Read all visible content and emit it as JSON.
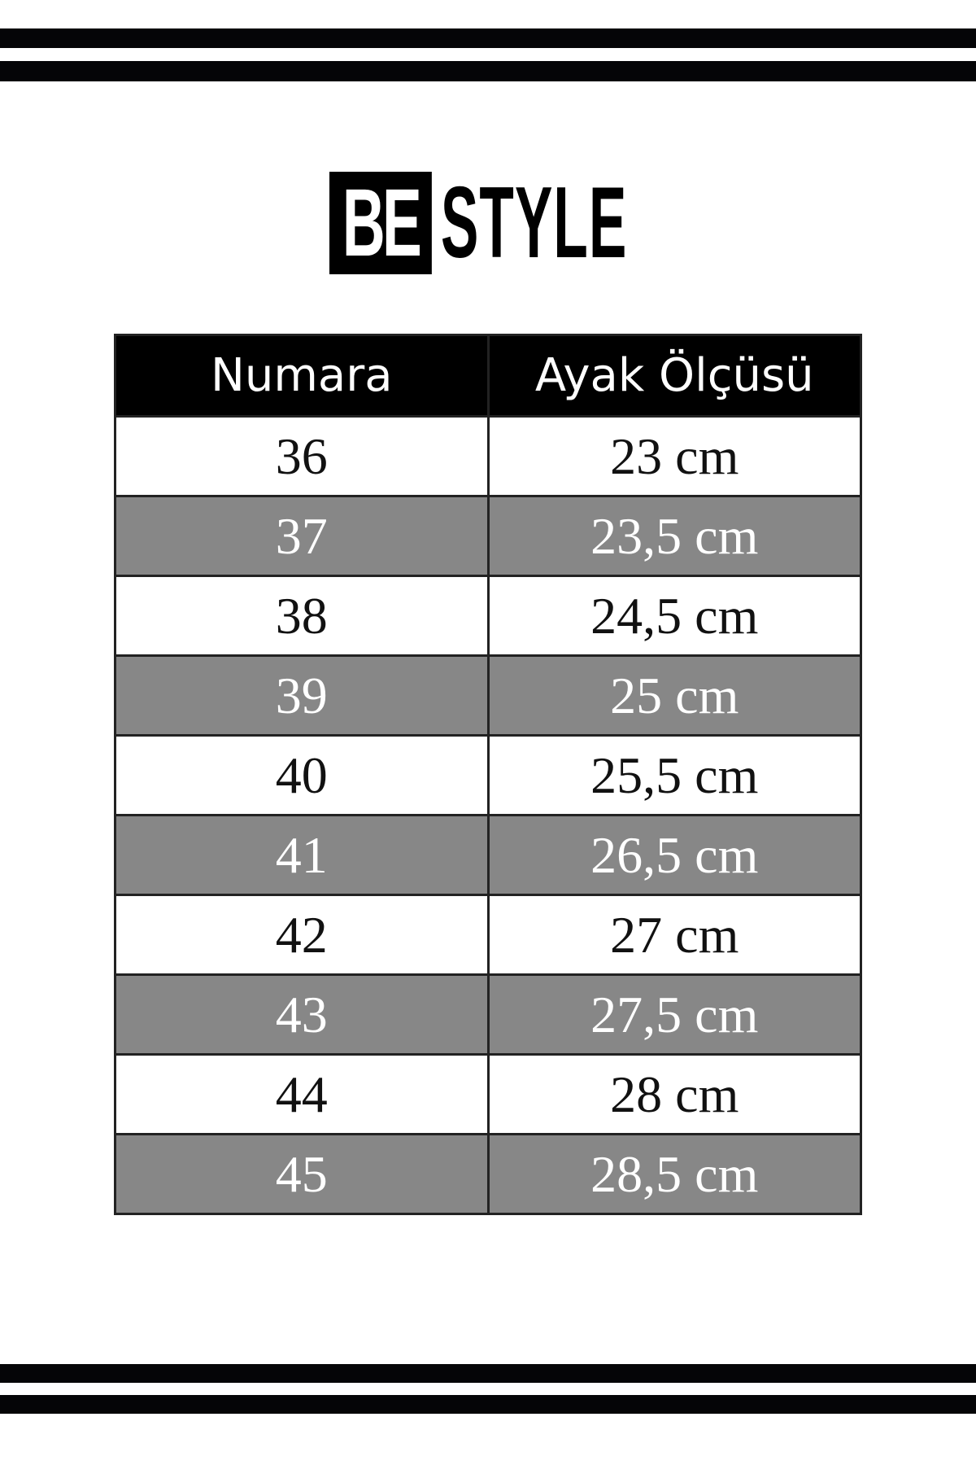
{
  "brand": {
    "logo_boxed": "BE",
    "logo_rest": "STYLE"
  },
  "colors": {
    "header_bg": "#000000",
    "stripe": "#050507",
    "alt_row": "#878787"
  },
  "table": {
    "headers": [
      "Numara",
      "Ayak Ölçüsü"
    ],
    "rows": [
      [
        "36",
        "23 cm"
      ],
      [
        "37",
        "23,5 cm"
      ],
      [
        "38",
        "24,5 cm"
      ],
      [
        "39",
        "25 cm"
      ],
      [
        "40",
        "25,5 cm"
      ],
      [
        "41",
        "26,5 cm"
      ],
      [
        "42",
        "27 cm"
      ],
      [
        "43",
        "27,5 cm"
      ],
      [
        "44",
        "28 cm"
      ],
      [
        "45",
        "28,5 cm"
      ]
    ]
  }
}
